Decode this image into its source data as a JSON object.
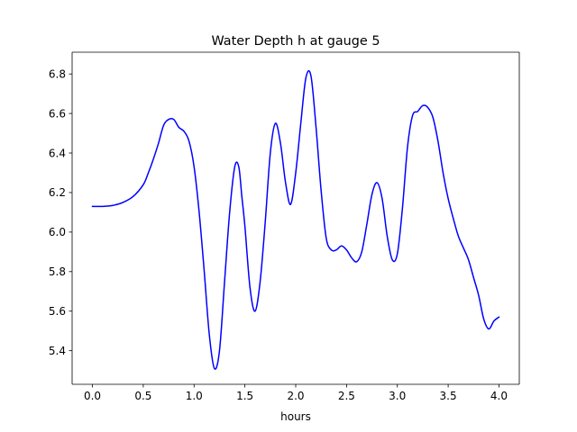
{
  "chart_data": {
    "type": "line",
    "title": "Water Depth h at gauge 5",
    "xlabel": "hours",
    "ylabel": "",
    "xlim": [
      -0.2,
      4.2
    ],
    "ylim": [
      5.23,
      6.91
    ],
    "xticks": [
      0.0,
      0.5,
      1.0,
      1.5,
      2.0,
      2.5,
      3.0,
      3.5,
      4.0
    ],
    "xtick_labels": [
      "0.0",
      "0.5",
      "1.0",
      "1.5",
      "2.0",
      "2.5",
      "3.0",
      "3.5",
      "4.0"
    ],
    "yticks": [
      5.4,
      5.6,
      5.8,
      6.0,
      6.2,
      6.4,
      6.6,
      6.8
    ],
    "ytick_labels": [
      "5.4",
      "5.6",
      "5.8",
      "6.0",
      "6.2",
      "6.4",
      "6.6",
      "6.8"
    ],
    "grid": false,
    "series": [
      {
        "color": "#0000ff",
        "x": [
          0.0,
          0.1,
          0.2,
          0.3,
          0.4,
          0.5,
          0.55,
          0.6,
          0.65,
          0.7,
          0.75,
          0.8,
          0.85,
          0.9,
          0.95,
          1.0,
          1.05,
          1.1,
          1.15,
          1.2,
          1.25,
          1.3,
          1.35,
          1.4,
          1.44,
          1.47,
          1.5,
          1.55,
          1.6,
          1.65,
          1.7,
          1.75,
          1.8,
          1.85,
          1.9,
          1.95,
          2.0,
          2.05,
          2.1,
          2.15,
          2.2,
          2.25,
          2.3,
          2.35,
          2.4,
          2.45,
          2.5,
          2.55,
          2.6,
          2.65,
          2.7,
          2.75,
          2.8,
          2.85,
          2.9,
          2.95,
          3.0,
          3.05,
          3.1,
          3.15,
          3.2,
          3.25,
          3.3,
          3.35,
          3.4,
          3.45,
          3.5,
          3.55,
          3.6,
          3.65,
          3.7,
          3.75,
          3.8,
          3.85,
          3.9,
          3.95,
          4.0
        ],
        "y": [
          6.13,
          6.13,
          6.135,
          6.15,
          6.18,
          6.24,
          6.3,
          6.37,
          6.45,
          6.54,
          6.57,
          6.57,
          6.53,
          6.51,
          6.46,
          6.33,
          6.1,
          5.8,
          5.48,
          5.31,
          5.4,
          5.75,
          6.1,
          6.33,
          6.33,
          6.18,
          6.03,
          5.72,
          5.6,
          5.75,
          6.05,
          6.4,
          6.55,
          6.45,
          6.25,
          6.14,
          6.3,
          6.55,
          6.78,
          6.79,
          6.53,
          6.21,
          5.97,
          5.91,
          5.91,
          5.93,
          5.91,
          5.87,
          5.85,
          5.9,
          6.04,
          6.19,
          6.25,
          6.17,
          5.98,
          5.86,
          5.89,
          6.12,
          6.43,
          6.59,
          6.61,
          6.64,
          6.63,
          6.58,
          6.46,
          6.3,
          6.17,
          6.07,
          5.98,
          5.92,
          5.86,
          5.77,
          5.68,
          5.56,
          5.51,
          5.55,
          5.57
        ]
      }
    ]
  }
}
